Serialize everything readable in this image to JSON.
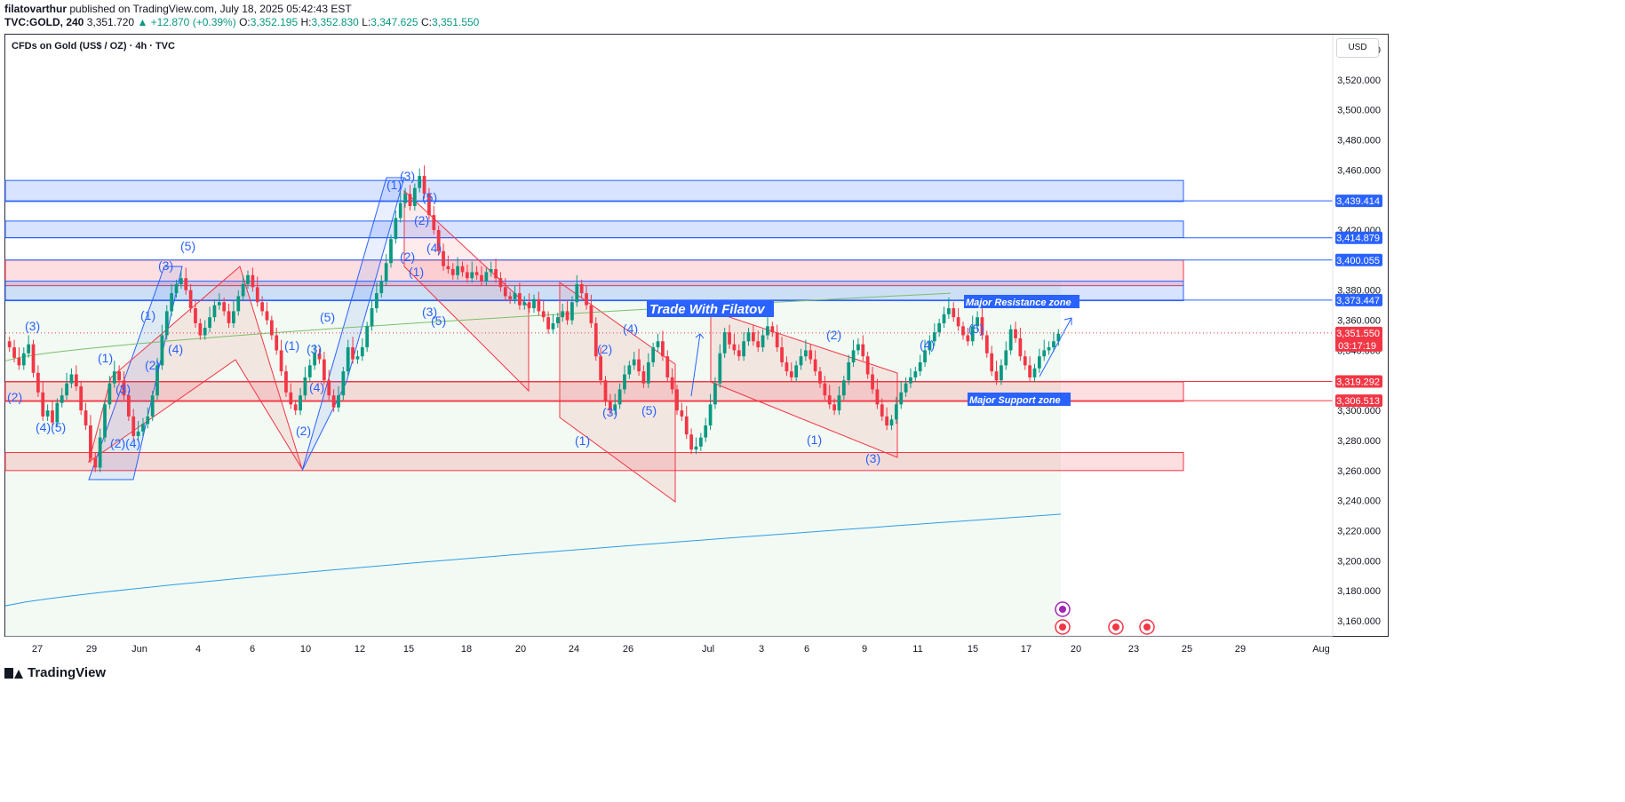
{
  "header": {
    "publisher": "filatovarthur",
    "published_text": "published on TradingView.com, July 18, 2025 05:42:43 EST",
    "symbol": "TVC:GOLD, 240",
    "last": "3,351.720",
    "change": "▲ +12.870 (+0.39%)",
    "open_label": "O:",
    "open": "3,352.195",
    "high_label": "H:",
    "high": "3,352.830",
    "low_label": "L:",
    "low": "3,347.625",
    "close_label": "C:",
    "close": "3,351.550"
  },
  "instrument_title": "CFDs on Gold (US$ / OZ) · 4h · TVC",
  "currency": "USD",
  "brand": "TradingView",
  "colors": {
    "up": "#089981",
    "down": "#f23645",
    "blue": "#2962ff",
    "ma_green": "#7cbf6a",
    "ma_blue": "#2e9ce6"
  },
  "chart_data": {
    "type": "candlestick",
    "y_range": [
      3150,
      3550
    ],
    "y_ticks": [
      3160,
      3180,
      3200,
      3220,
      3240,
      3260,
      3280,
      3300,
      3320,
      3340,
      3360,
      3380,
      3400,
      3420,
      3440,
      3460,
      3480,
      3500,
      3520,
      3540
    ],
    "y_tick_labels": [
      "3,160.000",
      "3,180.000",
      "3,200.000",
      "3,220.000",
      "3,240.000",
      "3,260.000",
      "3,280.000",
      "3,300.000",
      "3,320.000",
      "3,340.000",
      "3,360.000",
      "3,380.000",
      "3,400.000",
      "3,420.000",
      "3,440.000",
      "3,460.000",
      "3,480.000",
      "3,500.000",
      "3,520.000",
      "3,540.000"
    ],
    "x_ticks": [
      "27",
      "29",
      "Jun",
      "4",
      "6",
      "10",
      "12",
      "15",
      "18",
      "20",
      "24",
      "26",
      "Jul",
      "3",
      "6",
      "9",
      "11",
      "15",
      "17",
      "20",
      "23",
      "25",
      "29",
      "Aug"
    ],
    "price_labels": [
      {
        "value": 3439.414,
        "text": "3,439.414",
        "color": "#2962ff"
      },
      {
        "value": 3414.879,
        "text": "3,414.879",
        "color": "#2962ff"
      },
      {
        "value": 3400.055,
        "text": "3,400.055",
        "color": "#2962ff"
      },
      {
        "value": 3373.447,
        "text": "3,373.447",
        "color": "#2962ff"
      },
      {
        "value": 3351.55,
        "text": "3,351.550",
        "color": "#f23645",
        "sub": "03:17:19"
      },
      {
        "value": 3319.292,
        "text": "3,319.292",
        "color": "#f23645"
      },
      {
        "value": 3306.513,
        "text": "3,306.513",
        "color": "#f23645"
      }
    ],
    "zones": [
      {
        "from": 3439,
        "to": 3453,
        "color": "blue"
      },
      {
        "from": 3415,
        "to": 3426,
        "color": "blue"
      },
      {
        "from": 3383,
        "to": 3400,
        "color": "red"
      },
      {
        "from": 3373,
        "to": 3386,
        "color": "blue"
      },
      {
        "from": 3306,
        "to": 3319,
        "color": "red"
      },
      {
        "from": 3260,
        "to": 3272,
        "color": "red"
      }
    ],
    "annotations": {
      "trade_label": "Trade With Filatov",
      "resistance_label": "Major Resistance zone",
      "support_label": "Major Support zone"
    },
    "closes": [
      3342,
      3335,
      3330,
      3338,
      3344,
      3325,
      3312,
      3296,
      3300,
      3292,
      3305,
      3310,
      3318,
      3324,
      3316,
      3300,
      3290,
      3268,
      3262,
      3282,
      3304,
      3318,
      3326,
      3320,
      3310,
      3296,
      3283,
      3286,
      3291,
      3296,
      3310,
      3330,
      3350,
      3366,
      3378,
      3384,
      3388,
      3380,
      3368,
      3358,
      3350,
      3355,
      3362,
      3370,
      3372,
      3366,
      3358,
      3366,
      3376,
      3384,
      3390,
      3382,
      3372,
      3366,
      3360,
      3350,
      3340,
      3326,
      3312,
      3304,
      3300,
      3310,
      3322,
      3330,
      3338,
      3334,
      3320,
      3310,
      3302,
      3310,
      3326,
      3342,
      3334,
      3336,
      3342,
      3356,
      3368,
      3378,
      3386,
      3398,
      3414,
      3428,
      3438,
      3444,
      3436,
      3448,
      3456,
      3444,
      3430,
      3420,
      3406,
      3396,
      3394,
      3390,
      3396,
      3392,
      3388,
      3392,
      3390,
      3386,
      3392,
      3394,
      3388,
      3382,
      3376,
      3374,
      3378,
      3370,
      3372,
      3368,
      3374,
      3366,
      3362,
      3354,
      3358,
      3362,
      3366,
      3360,
      3372,
      3384,
      3378,
      3370,
      3358,
      3336,
      3320,
      3306,
      3300,
      3304,
      3314,
      3324,
      3330,
      3334,
      3326,
      3318,
      3332,
      3342,
      3346,
      3336,
      3322,
      3314,
      3300,
      3296,
      3284,
      3274,
      3276,
      3282,
      3290,
      3304,
      3318,
      3338,
      3352,
      3344,
      3340,
      3336,
      3346,
      3352,
      3346,
      3342,
      3350,
      3356,
      3352,
      3342,
      3332,
      3326,
      3322,
      3330,
      3336,
      3340,
      3334,
      3326,
      3318,
      3310,
      3304,
      3300,
      3310,
      3320,
      3332,
      3340,
      3344,
      3336,
      3324,
      3314,
      3304,
      3296,
      3290,
      3294,
      3304,
      3312,
      3318,
      3322,
      3326,
      3332,
      3340,
      3346,
      3352,
      3358,
      3364,
      3368,
      3362,
      3356,
      3350,
      3346,
      3356,
      3362,
      3350,
      3338,
      3326,
      3320,
      3330,
      3340,
      3354,
      3348,
      3336,
      3330,
      3322,
      3328,
      3336,
      3340,
      3342,
      3346,
      3351
    ]
  }
}
